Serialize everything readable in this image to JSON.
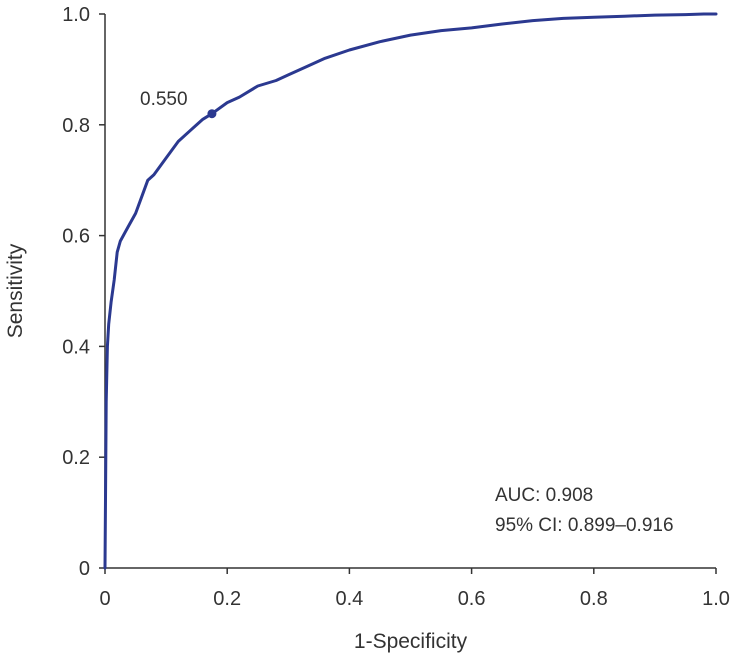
{
  "chart_data": {
    "type": "line",
    "title": "",
    "xlabel": "1-Specificity",
    "ylabel": "Sensitivity",
    "xlim": [
      0,
      1
    ],
    "ylim": [
      0,
      1
    ],
    "x_ticks": [
      "0",
      "0.2",
      "0.4",
      "0.6",
      "0.8",
      "1.0"
    ],
    "y_ticks": [
      "0",
      "0.2",
      "0.4",
      "0.6",
      "0.8",
      "1.0"
    ],
    "grid": false,
    "line_color": "#2b3990",
    "series": [
      {
        "x": [
          0,
          0.002,
          0.004,
          0.006,
          0.01,
          0.015,
          0.02,
          0.025,
          0.03,
          0.04,
          0.05,
          0.06,
          0.07,
          0.08,
          0.1,
          0.12,
          0.14,
          0.16,
          0.175,
          0.2,
          0.22,
          0.25,
          0.28,
          0.3,
          0.33,
          0.36,
          0.4,
          0.45,
          0.5,
          0.55,
          0.6,
          0.65,
          0.7,
          0.75,
          0.8,
          0.85,
          0.9,
          0.95,
          0.98,
          1.0
        ],
        "y": [
          0,
          0.3,
          0.4,
          0.44,
          0.48,
          0.52,
          0.57,
          0.59,
          0.6,
          0.62,
          0.64,
          0.67,
          0.7,
          0.71,
          0.74,
          0.77,
          0.79,
          0.81,
          0.82,
          0.84,
          0.85,
          0.87,
          0.88,
          0.89,
          0.905,
          0.92,
          0.935,
          0.95,
          0.962,
          0.97,
          0.975,
          0.982,
          0.988,
          0.992,
          0.994,
          0.996,
          0.998,
          0.999,
          1.0,
          1.0
        ]
      }
    ],
    "marker": {
      "x": 0.175,
      "y": 0.82,
      "label": "0.550"
    },
    "annotations": [
      "AUC: 0.908",
      "95% CI: 0.899–0.916"
    ]
  }
}
